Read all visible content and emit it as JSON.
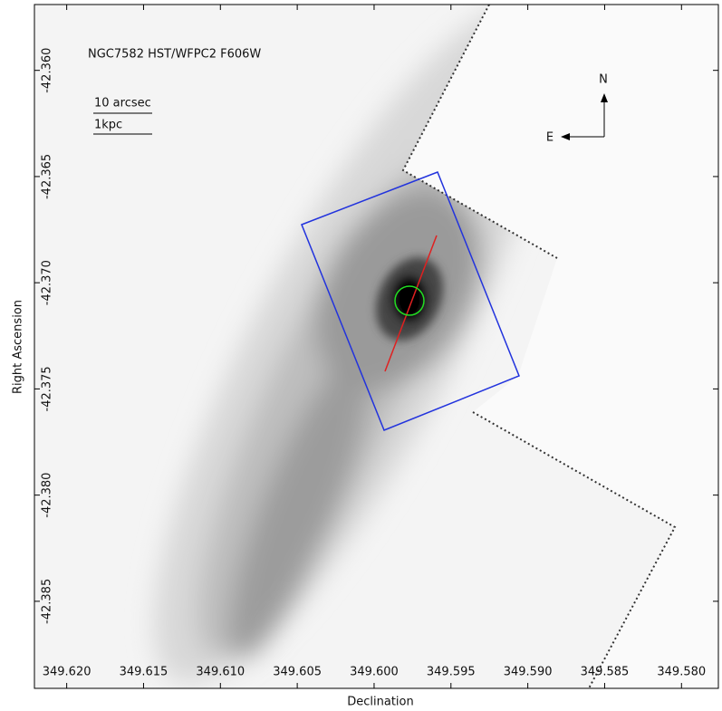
{
  "chart_data": {
    "type": "image",
    "title": "NGC7582 HST/WFPC2 F606W",
    "x_label": "Declination",
    "y_label": "Right Ascension",
    "annotations": [
      "10 arcsec",
      "1kpc",
      "N",
      "E"
    ],
    "xlim": [
      349.6221,
      349.5776
    ],
    "ylim": [
      -42.3891,
      -42.3569
    ],
    "xticks": [
      {
        "value": 349.62,
        "label": "349.620"
      },
      {
        "value": 349.615,
        "label": "349.615"
      },
      {
        "value": 349.61,
        "label": "349.610"
      },
      {
        "value": 349.605,
        "label": "349.605"
      },
      {
        "value": 349.6,
        "label": "349.600"
      },
      {
        "value": 349.595,
        "label": "349.595"
      },
      {
        "value": 349.59,
        "label": "349.590"
      },
      {
        "value": 349.585,
        "label": "349.585"
      },
      {
        "value": 349.58,
        "label": "349.580"
      }
    ],
    "yticks": [
      {
        "value": -42.36,
        "label": "-42.360"
      },
      {
        "value": -42.365,
        "label": "-42.365"
      },
      {
        "value": -42.37,
        "label": "-42.370"
      },
      {
        "value": -42.375,
        "label": "-42.375"
      },
      {
        "value": -42.38,
        "label": "-42.380"
      },
      {
        "value": -42.385,
        "label": "-42.385"
      }
    ]
  }
}
